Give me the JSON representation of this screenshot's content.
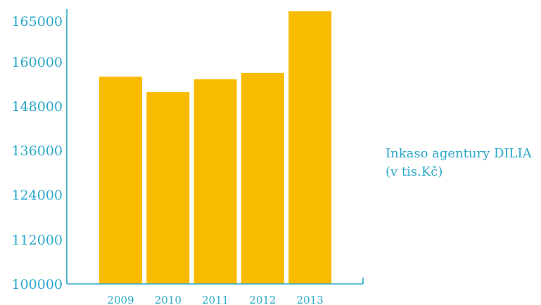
{
  "chart_data": {
    "type": "bar",
    "title": "",
    "xlabel": "",
    "ylabel": "",
    "categories": [
      "2009",
      "2010",
      "2011",
      "2012",
      "2013"
    ],
    "series": [
      {
        "name": "Inkaso agentury DILIA (v tis.Kč)",
        "values": [
          156000,
          151800,
          155300,
          157000,
          166200
        ]
      }
    ],
    "y_ticks": [
      "100000",
      "112000",
      "124000",
      "136000",
      "148000",
      "160000",
      "165000"
    ],
    "legend": {
      "line1": "Inkaso agentury DILIA",
      "line2": "(v tis.Kč)",
      "placement": "right"
    },
    "grid": false
  },
  "colors": {
    "bar": "#f9bb00",
    "axis": "#2aa7c9",
    "text": "#2aa7c9"
  }
}
